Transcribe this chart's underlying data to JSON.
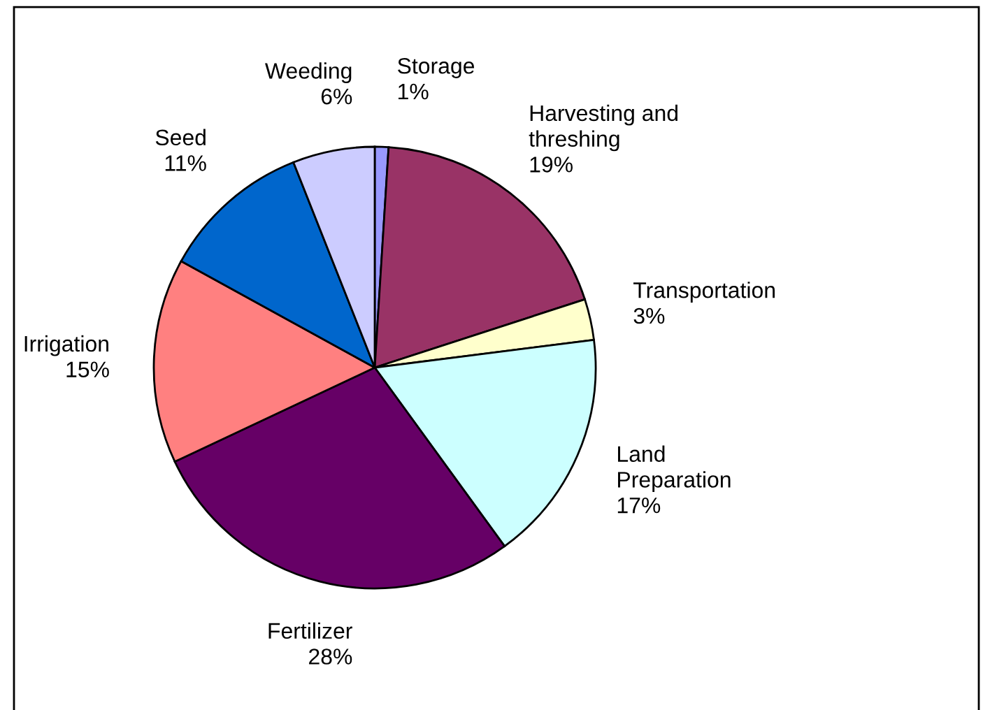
{
  "chart_data": {
    "type": "pie",
    "categories": [
      "Storage",
      "Harvesting and\nthreshing",
      "Transportation",
      "Land\nPreparation",
      "Fertilizer",
      "Irrigation",
      "Seed",
      "Weeding"
    ],
    "values": [
      1,
      19,
      3,
      17,
      28,
      15,
      11,
      6
    ],
    "colors": [
      "#9999ff",
      "#993366",
      "#ffffcc",
      "#ccffff",
      "#660066",
      "#ff8080",
      "#0066cc",
      "#ccccff"
    ],
    "value_labels": [
      "1%",
      "19%",
      "3%",
      "17%",
      "28%",
      "15%",
      "11%",
      "6%"
    ],
    "legend": false
  }
}
